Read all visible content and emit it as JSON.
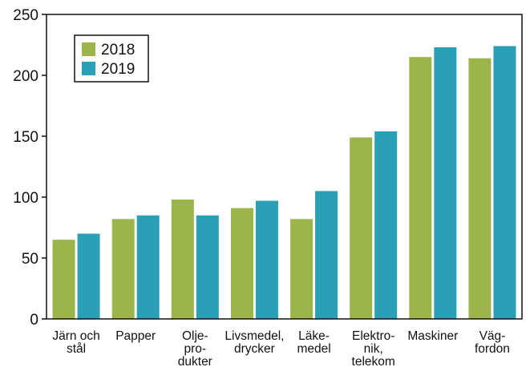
{
  "chart_data": {
    "type": "bar",
    "categories": [
      [
        "Järn och",
        "stål"
      ],
      [
        "Papper"
      ],
      [
        "Olje-",
        "pro-",
        "dukter"
      ],
      [
        "Livsmedel,",
        "drycker"
      ],
      [
        "Läke-",
        "medel"
      ],
      [
        "Elektro-",
        "nik,",
        "telekom"
      ],
      [
        "Maskiner"
      ],
      [
        "Väg-",
        "fordon"
      ]
    ],
    "series": [
      {
        "name": "2018",
        "color": "#9bb54a",
        "values": [
          65,
          82,
          98,
          91,
          82,
          149,
          215,
          214
        ]
      },
      {
        "name": "2019",
        "color": "#2b9fb5",
        "values": [
          70,
          85,
          85,
          97,
          105,
          154,
          223,
          224
        ]
      }
    ],
    "yticks": [
      "0",
      "50",
      "100",
      "150",
      "200",
      "250"
    ],
    "ylim": [
      0,
      250
    ],
    "grid": false,
    "legend_position": "top-left",
    "title": "",
    "xlabel": "",
    "ylabel": ""
  }
}
